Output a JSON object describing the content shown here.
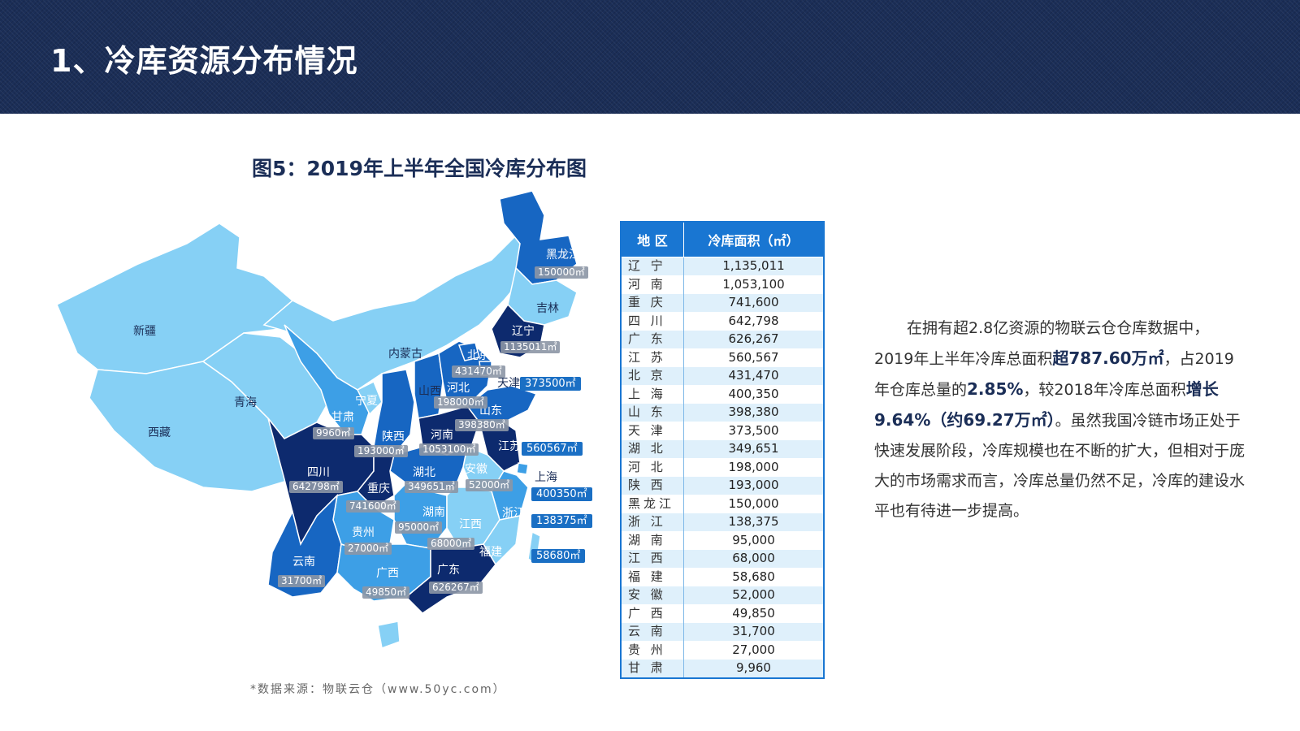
{
  "header": {
    "title": "1、冷库资源分布情况"
  },
  "figure": {
    "title": "图5：2019年上半年全国冷库分布图"
  },
  "source": "*数据来源：物联云仓（www.50yc.com）",
  "colors": {
    "header_bg": "#1b2e57",
    "table_head": "#1976d2",
    "very_dark": "#0d2a6e",
    "dark": "#1766c2",
    "medium": "#3d9fe6",
    "light": "#86d0f5"
  },
  "map": {
    "labels": {
      "heilongjiang": "黑龙江",
      "jilin": "吉林",
      "liaoning": "辽宁",
      "neimenggu": "内蒙古",
      "xinjiang": "新疆",
      "xizang": "西藏",
      "qinghai": "青海",
      "gansu": "甘肃",
      "ningxia": "宁夏",
      "shaanxi": "陕西",
      "shanxi": "山西",
      "hebei": "河北",
      "beijing": "北京",
      "tianjin": "天津",
      "shandong": "山东",
      "henan": "河南",
      "jiangsu": "江苏",
      "shanghai": "上海",
      "anhui": "安徽",
      "hubei": "湖北",
      "sichuan": "四川",
      "chongqing": "重庆",
      "hunan": "湖南",
      "jiangxi": "江西",
      "zhejiang": "浙江",
      "guizhou": "贵州",
      "fujian": "福建",
      "yunnan": "云南",
      "guangxi": "广西",
      "guangdong": "广东"
    },
    "values": {
      "heilongjiang": "150000㎡",
      "liaoning": "1135011㎡",
      "tianjin": "373500㎡",
      "beijing": "431470㎡",
      "hebei": "198000㎡",
      "shandong": "398380㎡",
      "gansu": "9960㎡",
      "shaanxi": "193000㎡",
      "henan": "1053100㎡",
      "jiangsu": "560567㎡",
      "sichuan": "642798㎡",
      "hubei": "349651㎡",
      "anhui": "52000㎡",
      "shanghai": "400350㎡",
      "chongqing": "741600㎡",
      "hunan": "95000㎡",
      "zhejiang": "138375㎡",
      "jiangxi": "68000㎡",
      "guizhou": "27000㎡",
      "fujian": "58680㎡",
      "yunnan": "31700㎡",
      "guangxi": "49850㎡",
      "guangdong": "626267㎡"
    }
  },
  "table": {
    "headers": [
      "地  区",
      "冷库面积（㎡）"
    ],
    "rows": [
      [
        "辽 宁",
        "1,135,011"
      ],
      [
        "河 南",
        "1,053,100"
      ],
      [
        "重 庆",
        "741,600"
      ],
      [
        "四 川",
        "642,798"
      ],
      [
        "广 东",
        "626,267"
      ],
      [
        "江 苏",
        "560,567"
      ],
      [
        "北 京",
        "431,470"
      ],
      [
        "上 海",
        "400,350"
      ],
      [
        "山 东",
        "398,380"
      ],
      [
        "天 津",
        "373,500"
      ],
      [
        "湖 北",
        "349,651"
      ],
      [
        "河 北",
        "198,000"
      ],
      [
        "陕 西",
        "193,000"
      ],
      [
        "黑龙江",
        "150,000"
      ],
      [
        "浙 江",
        "138,375"
      ],
      [
        "湖 南",
        "95,000"
      ],
      [
        "江 西",
        "68,000"
      ],
      [
        "福 建",
        "58,680"
      ],
      [
        "安 徽",
        "52,000"
      ],
      [
        "广 西",
        "49,850"
      ],
      [
        "云 南",
        "31,700"
      ],
      [
        "贵 州",
        "27,000"
      ],
      [
        "甘 肃",
        "9,960"
      ]
    ]
  },
  "paragraph": {
    "t1": "在拥有超2.8亿资源的物联云仓仓库数据中，2019年上半年冷库总面积",
    "b1": "超787.60万㎡",
    "t2": "，占2019年仓库总量的",
    "b2": "2.85%",
    "t3": "，较2018年冷库总面积",
    "b3": "增长9.64%（约69.27万㎡）",
    "t4": "。虽然我国冷链市场正处于快速发展阶段，冷库规模也在不断的扩大，但相对于庞大的市场需求而言，冷库总量仍然不足，冷库的建设水平也有待进一步提高。"
  }
}
